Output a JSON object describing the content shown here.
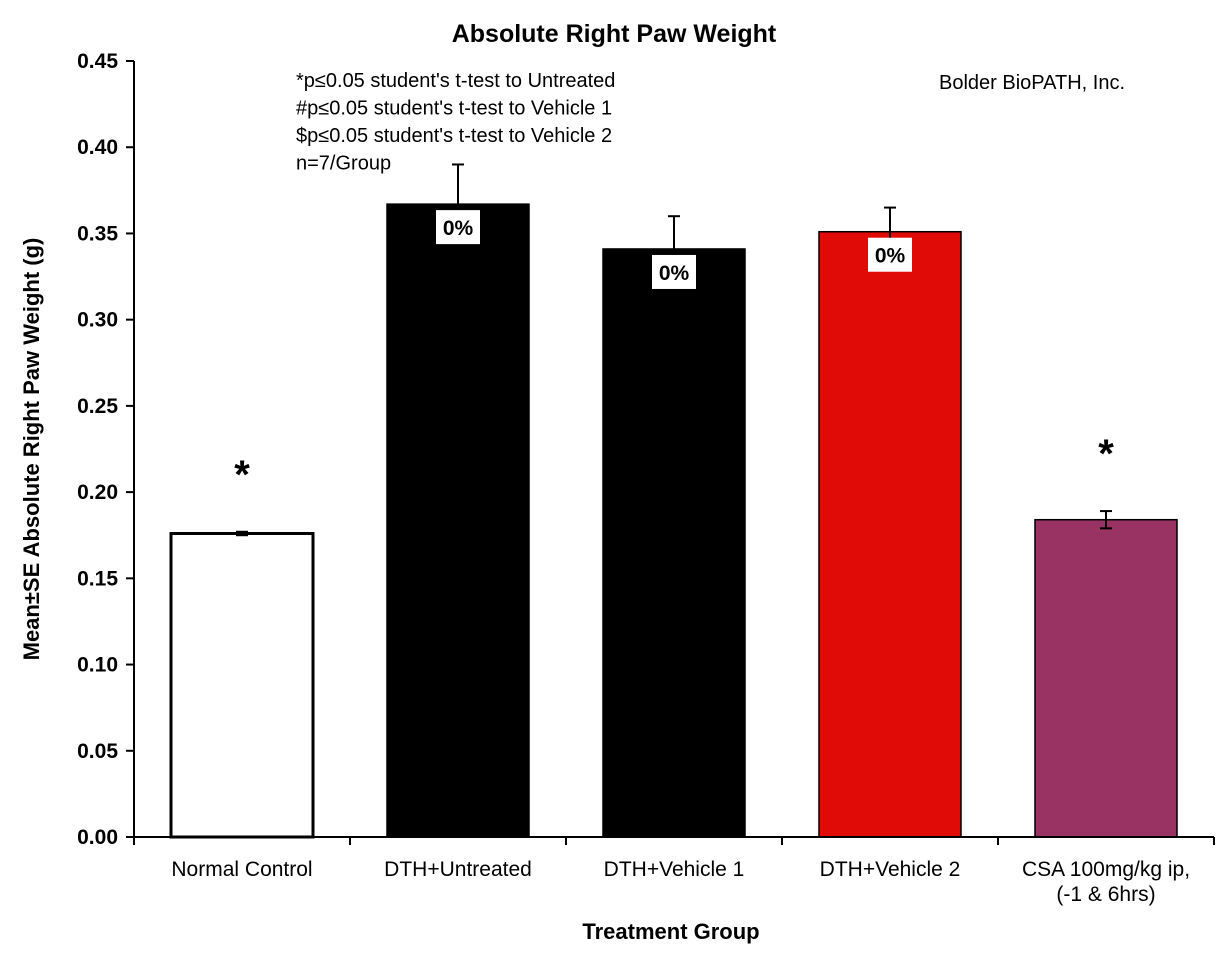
{
  "chart_data": {
    "type": "bar",
    "title": "Absolute Right Paw Weight",
    "xlabel": "Treatment Group",
    "ylabel": "Mean±SE Absolute Right Paw Weight (g)",
    "ylim": [
      0,
      0.45
    ],
    "yticks": [
      "0.00",
      "0.05",
      "0.10",
      "0.15",
      "0.20",
      "0.25",
      "0.30",
      "0.35",
      "0.40",
      "0.45"
    ],
    "categories": [
      [
        "Normal Control"
      ],
      [
        "DTH+Untreated"
      ],
      [
        "DTH+Vehicle 1"
      ],
      [
        "DTH+Vehicle 2"
      ],
      [
        "CSA 100mg/kg ip,",
        "(-1 & 6hrs)"
      ]
    ],
    "values": [
      0.176,
      0.367,
      0.341,
      0.351,
      0.184
    ],
    "errors": [
      0.001,
      0.023,
      0.019,
      0.014,
      0.005
    ],
    "colors": [
      "#ffffff",
      "#000000",
      "#000000",
      "#e00a06",
      "#983363"
    ],
    "bar_labels": [
      "",
      "0%",
      "0%",
      "0%",
      ""
    ],
    "significance": [
      "*",
      "",
      "",
      "",
      "*"
    ],
    "annotations": [
      "*p≤0.05 student's t-test to Untreated",
      "#p≤0.05 student's t-test to Vehicle 1",
      "$p≤0.05 student's t-test to Vehicle 2",
      "n=7/Group"
    ],
    "watermark": "Bolder BioPATH, Inc.",
    "grid": false,
    "legend": "none"
  }
}
